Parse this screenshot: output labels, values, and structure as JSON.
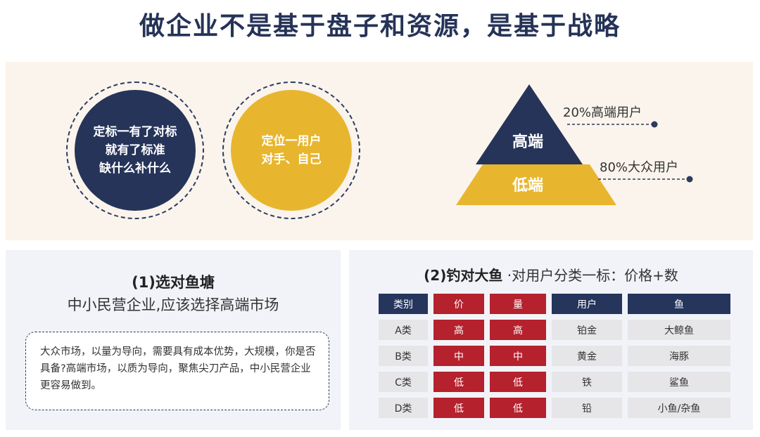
{
  "title": "做企业不是基于盘子和资源，是基于战略",
  "circles": [
    {
      "lines": [
        "定标一有了对标",
        "就有了标准",
        "缺什么补什么"
      ],
      "color": "#26345a"
    },
    {
      "lines": [
        "定位一用户",
        "对手、自己"
      ],
      "color": "#e8b62e"
    }
  ],
  "pyramid": {
    "top_label": "高端",
    "bottom_label": "低端",
    "top_note": "20%高端用户",
    "bottom_note": "80%大众用户",
    "top_color": "#26345a",
    "bottom_color": "#e8b62e"
  },
  "left_section": {
    "title": "(1)选对鱼塘",
    "subtitle": "中小民营企业,应该选择高端市场",
    "body": "大众市场，以量为导向，需要具有成本优势，大规模，你是否具备?高端市场，以质为导向，聚焦尖刀产品，中小民营企业更容易做到。"
  },
  "right_section": {
    "title_bold": "(2)钓对大鱼",
    "title_rest": "·对用户分类一标：价格+数",
    "table": {
      "headers": [
        "类别",
        "价",
        "量",
        "用户",
        "鱼"
      ],
      "rows": [
        [
          "A类",
          "高",
          "高",
          "铂金",
          "大鲸鱼"
        ],
        [
          "B类",
          "中",
          "中",
          "黄金",
          "海豚"
        ],
        [
          "C类",
          "低",
          "低",
          "铁",
          "鲨鱼"
        ],
        [
          "D类",
          "低",
          "低",
          "铅",
          "小鱼/杂鱼"
        ]
      ]
    }
  }
}
